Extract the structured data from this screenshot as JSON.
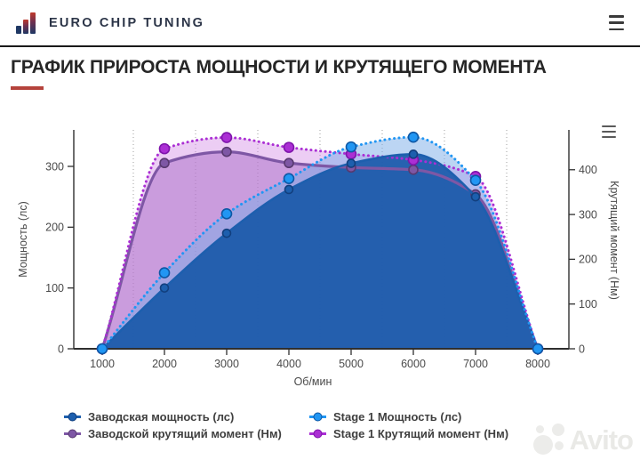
{
  "header": {
    "brand": "EURO CHIP TUNING"
  },
  "title": "ГРАФИК ПРИРОСТА МОЩНОСТИ И КРУТЯЩЕГО МОМЕНТА",
  "watermark": "Avito",
  "chart_data": {
    "type": "area",
    "x": [
      1000,
      2000,
      3000,
      4000,
      5000,
      6000,
      7000,
      8000
    ],
    "xlabel": "Об/мин",
    "x_ticks": [
      1000,
      2000,
      3000,
      4000,
      5000,
      6000,
      7000,
      8000
    ],
    "grid_x": [
      1500,
      2500,
      3500,
      4500,
      5500,
      6500,
      7500
    ],
    "axes": {
      "left": {
        "label": "Мощность (лс)",
        "ticks": [
          0,
          100,
          200,
          300
        ],
        "max": 360
      },
      "right": {
        "label": "Крутящий момент (Нм)",
        "ticks": [
          0,
          100,
          200,
          300,
          400
        ],
        "max": 489
      }
    },
    "series": [
      {
        "name": "Заводская мощность (лс)",
        "axis": "left",
        "line": "solid",
        "color": "#1d5fae",
        "values": [
          0,
          100,
          190,
          262,
          305,
          320,
          250,
          0
        ]
      },
      {
        "name": "Stage 1 Мощность (лс)",
        "axis": "left",
        "line": "dotted",
        "color": "#2196f3",
        "values": [
          0,
          125,
          222,
          280,
          332,
          348,
          277,
          0
        ]
      },
      {
        "name": "Заводской крутящий момент (Нм)",
        "axis": "right",
        "line": "solid",
        "color": "#7e57a5",
        "values": [
          0,
          415,
          440,
          415,
          405,
          400,
          345,
          0
        ]
      },
      {
        "name": "Stage 1 Крутящий момент (Нм)",
        "axis": "right",
        "line": "dotted",
        "color": "#ab2fd4",
        "values": [
          0,
          447,
          472,
          450,
          435,
          422,
          385,
          0
        ]
      }
    ],
    "legend": {
      "position": "bottom",
      "columns": [
        [
          0,
          2
        ],
        [
          1,
          3
        ]
      ]
    }
  }
}
